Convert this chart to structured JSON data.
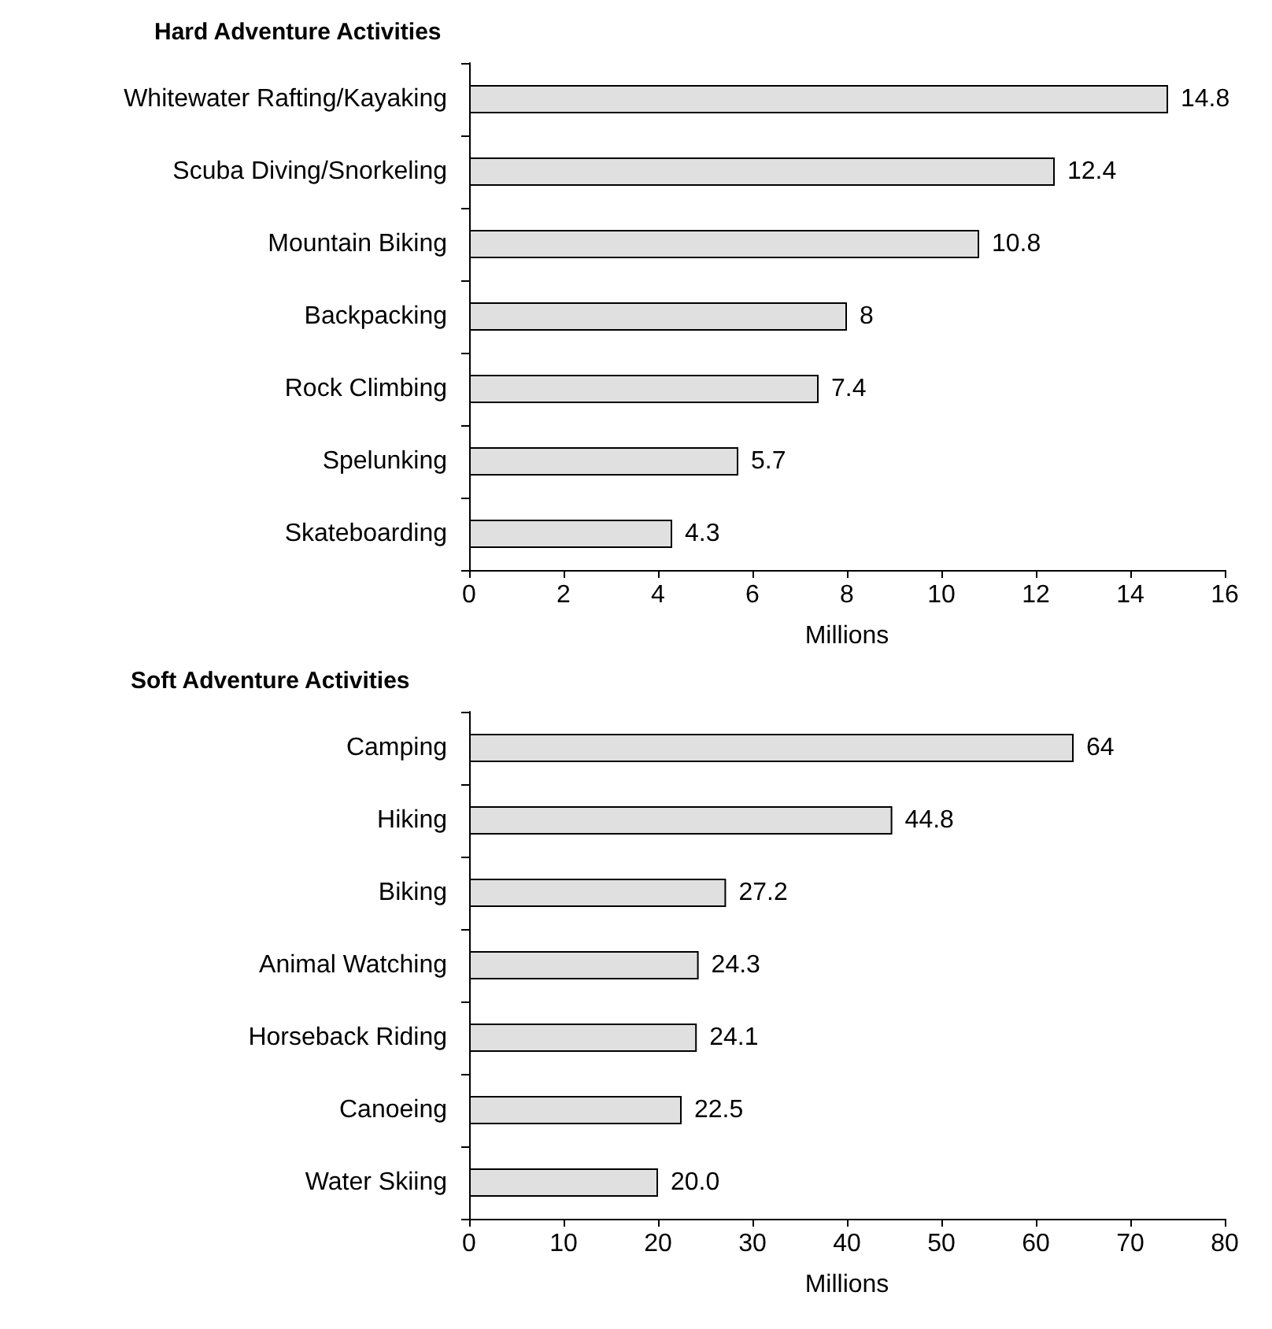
{
  "chart_data": [
    {
      "type": "bar",
      "orientation": "horizontal",
      "title": "Hard Adventure Activities",
      "xlabel": "Millions",
      "categories": [
        "Whitewater Rafting/Kayaking",
        "Scuba Diving/Snorkeling",
        "Mountain Biking",
        "Backpacking",
        "Rock Climbing",
        "Spelunking",
        "Skateboarding"
      ],
      "values": [
        14.8,
        12.4,
        10.8,
        8,
        7.4,
        5.7,
        4.3
      ],
      "color": "#e0e0e0",
      "xlim": [
        0,
        16
      ],
      "xticks": [
        0,
        2,
        4,
        6,
        8,
        10,
        12,
        14,
        16
      ],
      "data_labels": true
    },
    {
      "type": "bar",
      "orientation": "horizontal",
      "title": "Soft Adventure Activities",
      "xlabel": "Millions",
      "categories": [
        "Camping",
        "Hiking",
        "Biking",
        "Animal Watching",
        "Horseback Riding",
        "Canoeing",
        "Water Skiing"
      ],
      "values": [
        64,
        44.8,
        27.2,
        24.3,
        24.1,
        22.5,
        20.0
      ],
      "color": "#e0e0e0",
      "value_labels": [
        "64",
        "44.8",
        "27.2",
        "24.3",
        "24.1",
        "22.5",
        "20.0"
      ],
      "xlim": [
        0,
        80
      ],
      "xticks": [
        0,
        10,
        20,
        30,
        40,
        50,
        60,
        70,
        80
      ]
    }
  ]
}
